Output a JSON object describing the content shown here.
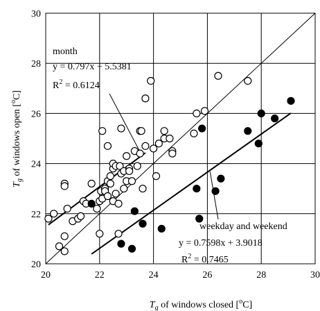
{
  "chart_data": {
    "type": "scatter",
    "xlabel": "Tg of windows closed [°C]",
    "ylabel": "Tg of windows open [°C]",
    "x_title": {
      "sym": "T",
      "sub": "g",
      "text": " of windows closed [",
      "deg": "o",
      "end": "C]"
    },
    "y_title": {
      "sym": "T",
      "sub": "g",
      "text": " of windows open [",
      "deg": "o",
      "end": "C]"
    },
    "xlim": [
      20,
      30
    ],
    "ylim": [
      20,
      30
    ],
    "x_ticks": [
      "20",
      "22",
      "24",
      "26",
      "28",
      "30"
    ],
    "y_ticks": [
      "20",
      "22",
      "24",
      "26",
      "28",
      "30"
    ],
    "grid": true,
    "series": [
      {
        "name": "month",
        "marker": "open-circle",
        "points": [
          [
            20.1,
            21.8
          ],
          [
            20.3,
            22.0
          ],
          [
            20.5,
            20.7
          ],
          [
            20.7,
            20.5
          ],
          [
            20.7,
            21.1
          ],
          [
            20.7,
            23.2
          ],
          [
            20.7,
            23.1
          ],
          [
            20.8,
            22.2
          ],
          [
            21.0,
            21.7
          ],
          [
            21.2,
            21.8
          ],
          [
            21.3,
            21.9
          ],
          [
            21.4,
            22.5
          ],
          [
            21.5,
            22.4
          ],
          [
            21.7,
            23.2
          ],
          [
            21.9,
            22.2
          ],
          [
            22.0,
            21.2
          ],
          [
            22.0,
            22.5
          ],
          [
            22.05,
            22.9
          ],
          [
            22.1,
            22.6
          ],
          [
            22.1,
            25.3
          ],
          [
            22.2,
            23.0
          ],
          [
            22.2,
            22.9
          ],
          [
            22.3,
            23.3
          ],
          [
            22.3,
            24.7
          ],
          [
            22.3,
            22.7
          ],
          [
            22.4,
            23.2
          ],
          [
            22.4,
            23.5
          ],
          [
            22.5,
            23.8
          ],
          [
            22.5,
            24.0
          ],
          [
            22.5,
            22.5
          ],
          [
            22.6,
            22.8
          ],
          [
            22.6,
            23.9
          ],
          [
            22.7,
            21.2
          ],
          [
            22.7,
            22.4
          ],
          [
            22.75,
            23.9
          ],
          [
            22.8,
            23.6
          ],
          [
            22.8,
            25.4
          ],
          [
            22.9,
            23.0
          ],
          [
            22.9,
            23.7
          ],
          [
            23.0,
            23.3
          ],
          [
            23.0,
            24.3
          ],
          [
            23.1,
            23.8
          ],
          [
            23.1,
            23.7
          ],
          [
            23.2,
            23.3
          ],
          [
            23.3,
            24.5
          ],
          [
            23.4,
            23.9
          ],
          [
            23.5,
            24.4
          ],
          [
            23.5,
            25.3
          ],
          [
            23.55,
            25.3
          ],
          [
            23.6,
            23.0
          ],
          [
            23.7,
            26.6
          ],
          [
            23.7,
            24.7
          ],
          [
            23.9,
            27.3
          ],
          [
            24.0,
            24.6
          ],
          [
            24.1,
            23.5
          ],
          [
            24.2,
            24.8
          ],
          [
            24.4,
            25.0
          ],
          [
            24.4,
            25.3
          ],
          [
            24.6,
            25.0
          ],
          [
            24.7,
            24.5
          ],
          [
            24.7,
            24.4
          ],
          [
            25.5,
            25.2
          ],
          [
            25.6,
            26.0
          ],
          [
            25.9,
            26.1
          ],
          [
            26.4,
            27.5
          ],
          [
            27.5,
            27.3
          ]
        ]
      },
      {
        "name": "weekday and weekend",
        "marker": "filled-circle",
        "points": [
          [
            21.7,
            22.4
          ],
          [
            22.8,
            20.8
          ],
          [
            23.2,
            20.6
          ],
          [
            23.3,
            22.1
          ],
          [
            23.6,
            21.6
          ],
          [
            24.3,
            21.4
          ],
          [
            25.6,
            23.0
          ],
          [
            25.7,
            21.8
          ],
          [
            25.8,
            25.4
          ],
          [
            26.3,
            22.9
          ],
          [
            26.5,
            23.4
          ],
          [
            27.5,
            25.3
          ],
          [
            27.9,
            24.8
          ],
          [
            28.0,
            26.0
          ],
          [
            28.5,
            25.8
          ],
          [
            29.1,
            26.5
          ]
        ]
      }
    ],
    "fit_lines": [
      {
        "series": "month",
        "slope": 0.797,
        "intercept": 5.5381,
        "x_range": [
          20.1,
          23.7
        ]
      },
      {
        "series": "weekday and weekend",
        "slope": 0.7598,
        "intercept": 3.9018,
        "x_range": [
          21.7,
          29.1
        ]
      }
    ],
    "reference_line": {
      "slope": 1,
      "intercept": 0
    },
    "annotations": {
      "month": {
        "label": "month",
        "equation": "y = 0.797x + 5.5381",
        "r2_prefix": "R",
        "r2_sup": "2",
        "r2_value": " = 0.6124"
      },
      "weekday": {
        "label": "weekday and weekend",
        "equation": "y = 0.7598x + 3.9018",
        "r2_prefix": "R",
        "r2_sup": "2",
        "r2_value": " = 0.7465"
      }
    }
  }
}
